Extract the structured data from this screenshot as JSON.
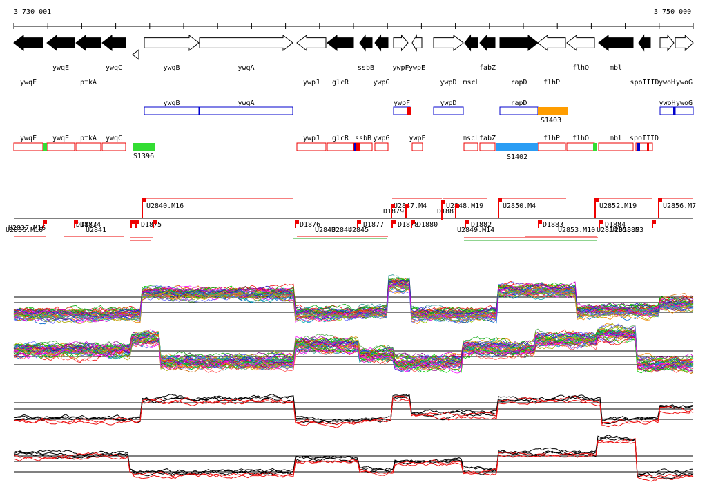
{
  "coordinates": {
    "start": "3 730 001",
    "end": "3 750 000"
  },
  "genes": [
    {
      "name": "ywqF",
      "strand": "-",
      "fill": "black"
    },
    {
      "name": "ywqE",
      "strand": "-",
      "fill": "black"
    },
    {
      "name": "ptkA",
      "strand": "-",
      "fill": "black"
    },
    {
      "name": "ywqC",
      "strand": "-",
      "fill": "black"
    },
    {
      "name": "ywqB",
      "strand": "+",
      "fill": "white"
    },
    {
      "name": "ywqA",
      "strand": "+",
      "fill": "white"
    },
    {
      "name": "ywpJ",
      "strand": "-",
      "fill": "white"
    },
    {
      "name": "glcR",
      "strand": "-",
      "fill": "black"
    },
    {
      "name": "ssbB",
      "strand": "-",
      "fill": "black"
    },
    {
      "name": "ywpG",
      "strand": "-",
      "fill": "black"
    },
    {
      "name": "ywpF",
      "strand": "+",
      "fill": "white"
    },
    {
      "name": "ywpE",
      "strand": "-",
      "fill": "white"
    },
    {
      "name": "ywpD",
      "strand": "+",
      "fill": "white"
    },
    {
      "name": "mscL",
      "strand": "-",
      "fill": "black"
    },
    {
      "name": "fabZ",
      "strand": "-",
      "fill": "black"
    },
    {
      "name": "rapD",
      "strand": "+",
      "fill": "black"
    },
    {
      "name": "flhP",
      "strand": "-",
      "fill": "white"
    },
    {
      "name": "flhO",
      "strand": "-",
      "fill": "white"
    },
    {
      "name": "mbl",
      "strand": "-",
      "fill": "black"
    },
    {
      "name": "spoIIID",
      "strand": "-",
      "fill": "black"
    },
    {
      "name": "ywoH",
      "strand": "+",
      "fill": "white"
    },
    {
      "name": "ywoG",
      "strand": "+",
      "fill": "white"
    }
  ],
  "operons_plus": [
    "ywqB",
    "ywqA",
    "ywpF",
    "ywpD",
    "rapD",
    "ywoH",
    "ywoG"
  ],
  "operons_minus": [
    "ywqF",
    "ywqE",
    "ptkA",
    "ywqC",
    "ywpJ",
    "glcR",
    "ssbB",
    "ywpG",
    "ywpE",
    "mscL",
    "fabZ",
    "flhP",
    "flhO",
    "mbl",
    "spoIIID"
  ],
  "segments": [
    "S1396",
    "S1402",
    "S1403"
  ],
  "segment_colors": {
    "S1396": "#33dd33",
    "S1402": "#2a9df4",
    "S1403": "#ff9d00"
  },
  "transcripts_top": [
    "U2840.M16",
    "U2848.M19",
    "U2850.M4",
    "U2852.M19",
    "U2856.M7"
  ],
  "transcript_mid_labels": [
    "U2847.M4",
    "D1879",
    "D1881"
  ],
  "transcripts_bottom": [
    "U2837.M16",
    "D1875",
    "D1876",
    "D1877",
    "D1878",
    "D1880",
    "D1882",
    "D1883",
    "U2853.M10",
    "D1884",
    "U2855.M3"
  ],
  "overlapping_bottom_labels": [
    "U2836.M16",
    "D1873",
    "D1874",
    "U2841",
    "U2843",
    "U2844",
    "U2845",
    "U2849.M14",
    "U2854",
    "D1885"
  ],
  "colors": {
    "neg_strand": "#ee0000",
    "pos_strand": "#0000cc",
    "expr_red": "#ee1111"
  }
}
